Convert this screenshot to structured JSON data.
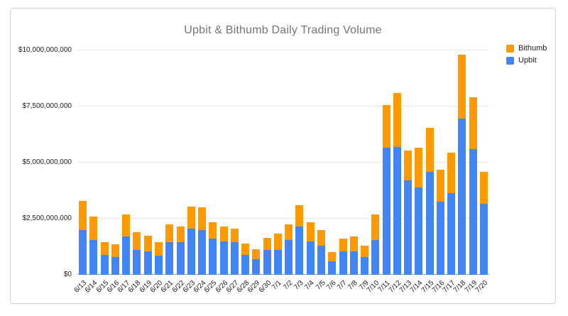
{
  "chart_data": {
    "type": "bar",
    "stacked": true,
    "title": "Upbit & Bithumb Daily Trading Volume",
    "title_color": "#757575",
    "grid": true,
    "legend_position": "top-right",
    "legend_order": [
      "Bithumb",
      "Upbit"
    ],
    "ylim": [
      0,
      10000000000
    ],
    "yticks": [
      {
        "value": 0,
        "label": "$0"
      },
      {
        "value": 2500000000,
        "label": "$2,500,000,000"
      },
      {
        "value": 5000000000,
        "label": "$5,000,000,000"
      },
      {
        "value": 7500000000,
        "label": "$7,500,000,000"
      },
      {
        "value": 10000000000,
        "label": "$10,000,000,000"
      }
    ],
    "categories": [
      "6/13",
      "6/14",
      "6/15",
      "6/16",
      "6/17",
      "6/18",
      "6/19",
      "6/20",
      "6/21",
      "6/22",
      "6/23",
      "6/24",
      "6/25",
      "6/26",
      "6/27",
      "6/28",
      "6/29",
      "6/30",
      "7/1",
      "7/2",
      "7/3",
      "7/4",
      "7/5",
      "7/6",
      "7/7",
      "7/8",
      "7/9",
      "7/10",
      "7/11",
      "7/12",
      "7/13",
      "7/14",
      "7/15",
      "7/16",
      "7/17",
      "7/18",
      "7/19",
      "7/20"
    ],
    "series": [
      {
        "name": "Upbit",
        "color": "#4285F4",
        "values": [
          2000000000,
          1550000000,
          900000000,
          800000000,
          1700000000,
          1100000000,
          1050000000,
          850000000,
          1450000000,
          1450000000,
          2050000000,
          2000000000,
          1600000000,
          1500000000,
          1450000000,
          900000000,
          700000000,
          1100000000,
          1100000000,
          1550000000,
          2150000000,
          1500000000,
          1300000000,
          600000000,
          1050000000,
          1050000000,
          800000000,
          1550000000,
          5650000000,
          5700000000,
          4200000000,
          3900000000,
          4600000000,
          3250000000,
          3650000000,
          6950000000,
          5600000000,
          3150000000
        ]
      },
      {
        "name": "Bithumb",
        "color": "#FF9900",
        "values": [
          1300000000,
          1050000000,
          550000000,
          550000000,
          1000000000,
          800000000,
          700000000,
          600000000,
          800000000,
          700000000,
          1000000000,
          1000000000,
          750000000,
          650000000,
          600000000,
          500000000,
          450000000,
          550000000,
          750000000,
          700000000,
          950000000,
          850000000,
          700000000,
          400000000,
          550000000,
          650000000,
          500000000,
          1150000000,
          1900000000,
          2400000000,
          1350000000,
          1750000000,
          1950000000,
          1450000000,
          1800000000,
          2850000000,
          2300000000,
          1450000000
        ]
      }
    ]
  }
}
